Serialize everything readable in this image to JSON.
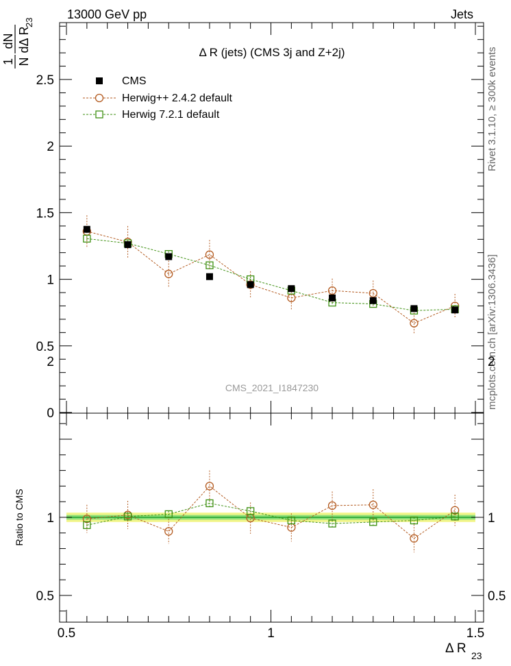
{
  "header": {
    "energy_label": "13000 GeV pp",
    "category_label": "Jets"
  },
  "side_labels": {
    "rivet_label": "Rivet 3.1.10, ≥ 300k events",
    "source_label": "mcplots.cern.ch [arXiv:1306.3436]"
  },
  "watermark": "CMS_2021_I1847230",
  "chart_data": [
    {
      "type": "scatter",
      "panel": "main",
      "title": "Δ R (jets) (CMS 3j and Z+2j)",
      "ylabel": {
        "prefix_top": "1",
        "prefix_bottom": "N",
        "frac_top": "dN",
        "frac_bottom": "dΔ R",
        "subscript": "23"
      },
      "xlabel": {
        "main": "Δ R",
        "subscript": "23"
      },
      "xlim": [
        0.5,
        1.5
      ],
      "ylim": [
        0,
        2.95
      ],
      "yticks": [
        0,
        0.5,
        1,
        1.5,
        2,
        2.5
      ],
      "ytick_labels": [
        "0",
        "0.5",
        "1",
        "1.5",
        "2",
        "2.5"
      ],
      "legend_position": "top-left",
      "x": [
        0.55,
        0.65,
        0.75,
        0.85,
        0.95,
        1.05,
        1.15,
        1.25,
        1.35,
        1.45
      ],
      "series": [
        {
          "name": "CMS",
          "marker": "filled-square",
          "color": "#000000",
          "values": [
            1.375,
            1.26,
            1.17,
            1.02,
            0.96,
            0.93,
            0.86,
            0.84,
            0.78,
            0.77
          ],
          "errors": [
            0.02,
            0.02,
            0.02,
            0.015,
            0.015,
            0.015,
            0.015,
            0.015,
            0.015,
            0.015
          ]
        },
        {
          "name": "Herwig++ 2.4.2 default",
          "marker": "open-circle",
          "color": "#b35a1f",
          "values": [
            1.36,
            1.28,
            1.04,
            1.185,
            0.96,
            0.86,
            0.915,
            0.895,
            0.67,
            0.8
          ],
          "errors": [
            0.12,
            0.12,
            0.1,
            0.11,
            0.1,
            0.09,
            0.09,
            0.095,
            0.08,
            0.09
          ]
        },
        {
          "name": "Herwig 7.2.1 default",
          "marker": "open-square",
          "color": "#3d8f10",
          "values": [
            1.305,
            1.27,
            1.19,
            1.105,
            1.0,
            0.915,
            0.825,
            0.815,
            0.765,
            0.775
          ],
          "errors": [
            0.02,
            0.02,
            0.02,
            0.02,
            0.02,
            0.02,
            0.02,
            0.02,
            0.02,
            0.02
          ]
        }
      ]
    },
    {
      "type": "scatter",
      "panel": "ratio",
      "ylabel": "Ratio to CMS",
      "xlim": [
        0.5,
        1.5
      ],
      "ylim": [
        0.34,
        2.3
      ],
      "yticks": [
        0.5,
        1,
        2
      ],
      "ytick_labels": [
        "0.5",
        "1",
        "2"
      ],
      "xticks": [
        0.5,
        1,
        1.5
      ],
      "xtick_labels": [
        "0.5",
        "1",
        "1.5"
      ],
      "reference_line": 1,
      "band_inner": [
        0.985,
        1.015
      ],
      "band_outer": [
        0.97,
        1.03
      ],
      "x": [
        0.55,
        0.65,
        0.75,
        0.85,
        0.95,
        1.05,
        1.15,
        1.25,
        1.35,
        1.45
      ],
      "series": [
        {
          "name": "Herwig++ 2.4.2 default",
          "marker": "open-circle",
          "color": "#b35a1f",
          "values": [
            0.99,
            1.015,
            0.91,
            1.2,
            0.995,
            0.935,
            1.075,
            1.08,
            0.865,
            1.045
          ],
          "errors": [
            0.09,
            0.09,
            0.08,
            0.1,
            0.1,
            0.09,
            0.09,
            0.1,
            0.09,
            0.1
          ]
        },
        {
          "name": "Herwig 7.2.1 default",
          "marker": "open-square",
          "color": "#3d8f10",
          "values": [
            0.95,
            1.005,
            1.02,
            1.09,
            1.04,
            0.98,
            0.96,
            0.97,
            0.98,
            1.005
          ],
          "errors": [
            0.02,
            0.02,
            0.02,
            0.02,
            0.02,
            0.02,
            0.02,
            0.02,
            0.02,
            0.02
          ]
        }
      ]
    }
  ]
}
